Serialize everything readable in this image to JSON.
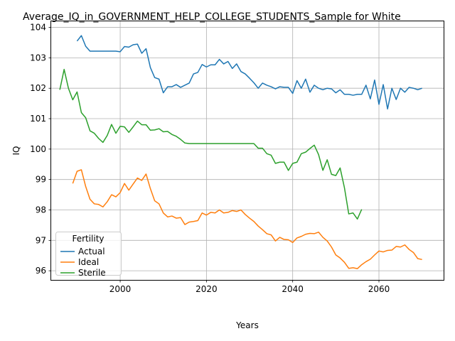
{
  "chart_data": {
    "type": "line",
    "title": "Average_IQ_in_GOVERNMENT_HELP_COLLEGE_STUDENTS_Sample for White",
    "xlabel": "Years",
    "ylabel": "IQ",
    "xlim": [
      1984,
      2075
    ],
    "ylim": [
      95.7,
      104.2
    ],
    "xticks": [
      2000,
      2020,
      2040,
      2060
    ],
    "yticks": [
      96,
      97,
      98,
      99,
      100,
      101,
      102,
      103,
      104
    ],
    "grid": true,
    "legend": {
      "title": "Fertility",
      "placement": "lower-left"
    },
    "series": [
      {
        "name": "Actual",
        "color": "#1f77b4",
        "x": [
          1990,
          1991,
          1992,
          1993,
          1994,
          1995,
          1996,
          1997,
          1998,
          1999,
          2000,
          2001,
          2002,
          2003,
          2004,
          2005,
          2006,
          2007,
          2008,
          2009,
          2010,
          2011,
          2012,
          2013,
          2014,
          2015,
          2016,
          2017,
          2018,
          2019,
          2020,
          2021,
          2022,
          2023,
          2024,
          2025,
          2026,
          2027,
          2028,
          2029,
          2030,
          2031,
          2032,
          2033,
          2034,
          2035,
          2036,
          2037,
          2038,
          2039,
          2040,
          2041,
          2042,
          2043,
          2044,
          2045,
          2046,
          2047,
          2048,
          2049,
          2050,
          2051,
          2052,
          2053,
          2054,
          2055,
          2056,
          2057,
          2058,
          2059,
          2060,
          2061,
          2062,
          2063,
          2064,
          2065,
          2066,
          2067,
          2068,
          2069,
          2070
        ],
        "values": [
          103.55,
          103.73,
          103.38,
          103.22,
          103.22,
          103.22,
          103.22,
          103.22,
          103.22,
          103.22,
          103.2,
          103.37,
          103.35,
          103.43,
          103.45,
          103.15,
          103.3,
          102.68,
          102.35,
          102.3,
          101.85,
          102.05,
          102.05,
          102.12,
          102.03,
          102.1,
          102.17,
          102.47,
          102.52,
          102.78,
          102.7,
          102.77,
          102.77,
          102.95,
          102.8,
          102.88,
          102.65,
          102.8,
          102.55,
          102.47,
          102.33,
          102.18,
          102.0,
          102.17,
          102.1,
          102.05,
          101.98,
          102.05,
          102.03,
          102.03,
          101.83,
          102.25,
          102.0,
          102.3,
          101.87,
          102.1,
          102.0,
          101.95,
          102.0,
          101.98,
          101.85,
          101.95,
          101.8,
          101.8,
          101.77,
          101.8,
          101.8,
          102.1,
          101.65,
          102.27,
          101.47,
          102.12,
          101.32,
          102.0,
          101.63,
          102.0,
          101.87,
          102.03,
          102.0,
          101.95,
          102.0
        ]
      },
      {
        "name": "Ideal",
        "color": "#ff7f0e",
        "x": [
          1989,
          1990,
          1991,
          1992,
          1993,
          1994,
          1995,
          1996,
          1997,
          1998,
          1999,
          2000,
          2001,
          2002,
          2003,
          2004,
          2005,
          2006,
          2007,
          2008,
          2009,
          2010,
          2011,
          2012,
          2013,
          2014,
          2015,
          2016,
          2017,
          2018,
          2019,
          2020,
          2021,
          2022,
          2023,
          2024,
          2025,
          2026,
          2027,
          2028,
          2029,
          2030,
          2031,
          2032,
          2033,
          2034,
          2035,
          2036,
          2037,
          2038,
          2039,
          2040,
          2041,
          2042,
          2043,
          2044,
          2045,
          2046,
          2047,
          2048,
          2049,
          2050,
          2051,
          2052,
          2053,
          2054,
          2055,
          2056,
          2057,
          2058,
          2059,
          2060,
          2061,
          2062,
          2063,
          2064,
          2065,
          2066,
          2067,
          2068,
          2069,
          2070
        ],
        "values": [
          98.87,
          99.27,
          99.32,
          98.77,
          98.35,
          98.2,
          98.18,
          98.1,
          98.27,
          98.5,
          98.43,
          98.57,
          98.87,
          98.65,
          98.85,
          99.05,
          98.97,
          99.18,
          98.7,
          98.3,
          98.2,
          97.9,
          97.77,
          97.8,
          97.73,
          97.75,
          97.52,
          97.6,
          97.62,
          97.65,
          97.9,
          97.83,
          97.92,
          97.9,
          98.0,
          97.9,
          97.92,
          97.98,
          97.95,
          98.0,
          97.85,
          97.73,
          97.62,
          97.47,
          97.35,
          97.22,
          97.18,
          96.98,
          97.1,
          97.03,
          97.02,
          96.93,
          97.08,
          97.13,
          97.2,
          97.23,
          97.22,
          97.27,
          97.1,
          96.98,
          96.78,
          96.52,
          96.42,
          96.28,
          96.08,
          96.1,
          96.07,
          96.2,
          96.3,
          96.38,
          96.52,
          96.65,
          96.62,
          96.67,
          96.68,
          96.8,
          96.78,
          96.85,
          96.7,
          96.6,
          96.4,
          96.37
        ]
      },
      {
        "name": "Sterile",
        "color": "#2ca02c",
        "x": [
          1986,
          1987,
          1988,
          1989,
          1990,
          1991,
          1992,
          1993,
          1994,
          1995,
          1996,
          1997,
          1998,
          1999,
          2000,
          2001,
          2002,
          2003,
          2004,
          2005,
          2006,
          2007,
          2008,
          2009,
          2010,
          2011,
          2012,
          2013,
          2014,
          2015,
          2016,
          2017,
          2018,
          2019,
          2020,
          2021,
          2022,
          2023,
          2024,
          2025,
          2026,
          2027,
          2028,
          2029,
          2030,
          2031,
          2032,
          2033,
          2034,
          2035,
          2036,
          2037,
          2038,
          2039,
          2040,
          2041,
          2042,
          2043,
          2044,
          2045,
          2046,
          2047,
          2048,
          2049,
          2050,
          2051,
          2052,
          2053,
          2054,
          2055,
          2056
        ],
        "values": [
          101.95,
          102.62,
          102.0,
          101.62,
          101.88,
          101.2,
          101.03,
          100.6,
          100.52,
          100.35,
          100.22,
          100.45,
          100.81,
          100.52,
          100.75,
          100.73,
          100.55,
          100.73,
          100.92,
          100.8,
          100.8,
          100.62,
          100.63,
          100.67,
          100.57,
          100.58,
          100.48,
          100.42,
          100.32,
          100.2,
          100.18,
          100.18,
          100.18,
          100.18,
          100.18,
          100.18,
          100.18,
          100.18,
          100.18,
          100.18,
          100.18,
          100.18,
          100.18,
          100.18,
          100.18,
          100.18,
          100.03,
          100.03,
          99.85,
          99.8,
          99.53,
          99.57,
          99.57,
          99.3,
          99.53,
          99.57,
          99.85,
          99.9,
          100.02,
          100.13,
          99.82,
          99.3,
          99.65,
          99.17,
          99.13,
          99.38,
          98.73,
          97.87,
          97.9,
          97.7,
          98.02
        ]
      }
    ]
  }
}
